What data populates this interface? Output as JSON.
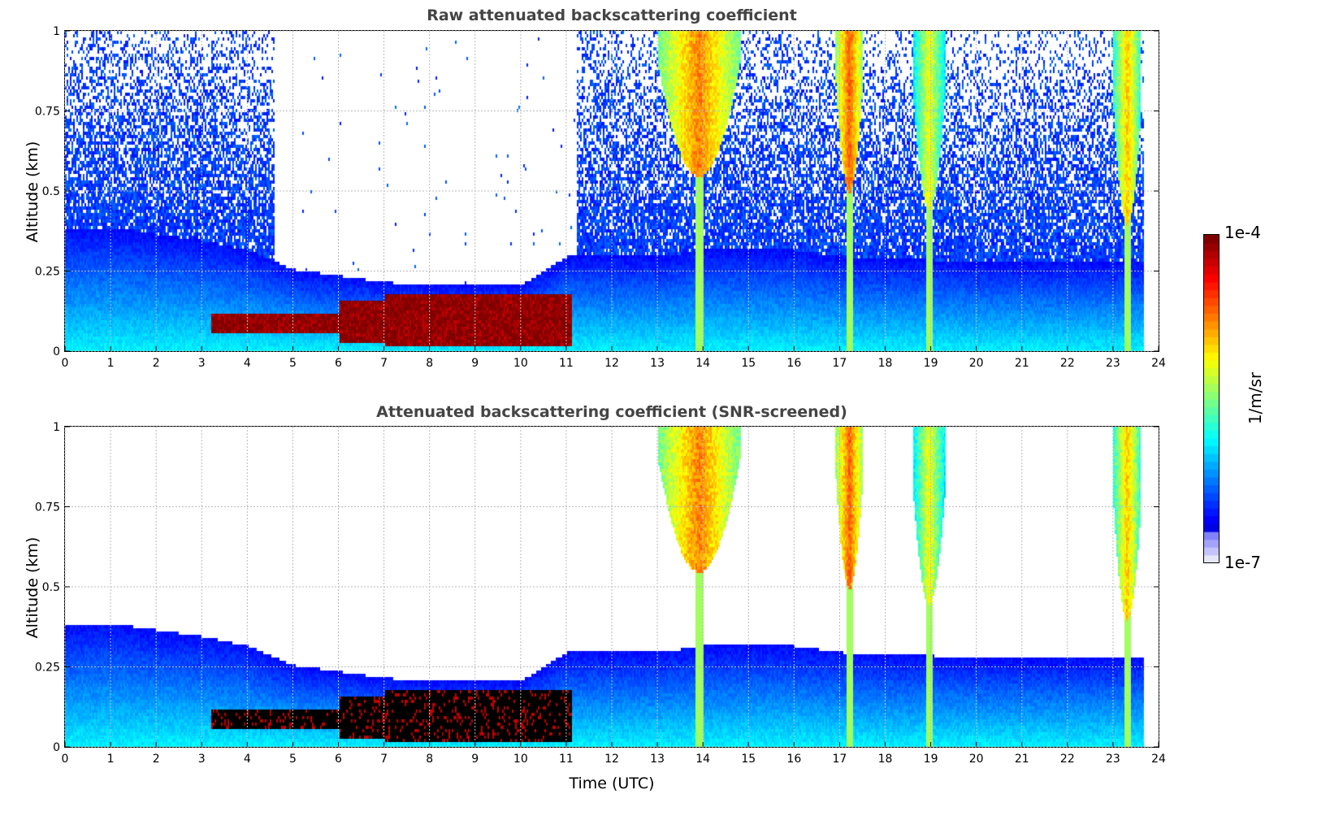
{
  "chart_data": [
    {
      "type": "heatmap",
      "title": "Raw attenuated backscattering coefficient",
      "xlabel": "Time (UTC)",
      "ylabel": "Altitude (km)",
      "xlim": [
        0,
        24
      ],
      "ylim": [
        0,
        1
      ],
      "xticks": [
        "0",
        "1",
        "2",
        "3",
        "4",
        "5",
        "6",
        "7",
        "8",
        "9",
        "10",
        "11",
        "12",
        "13",
        "14",
        "15",
        "16",
        "17",
        "18",
        "19",
        "20",
        "21",
        "22",
        "23",
        "24"
      ],
      "yticks": [
        "0",
        "0.25",
        "0.5",
        "0.75",
        "1"
      ],
      "grid": true,
      "screened": false
    },
    {
      "type": "heatmap",
      "title": "Attenuated backscattering coefficient (SNR-screened)",
      "xlabel": "Time (UTC)",
      "ylabel": "Altitude (km)",
      "xlim": [
        0,
        24
      ],
      "ylim": [
        0,
        1
      ],
      "xticks": [
        "0",
        "1",
        "2",
        "3",
        "4",
        "5",
        "6",
        "7",
        "8",
        "9",
        "10",
        "11",
        "12",
        "13",
        "14",
        "15",
        "16",
        "17",
        "18",
        "19",
        "20",
        "21",
        "22",
        "23",
        "24"
      ],
      "yticks": [
        "0",
        "0.25",
        "0.5",
        "0.75",
        "1"
      ],
      "grid": true,
      "screened": true
    }
  ],
  "features": {
    "data_end_hour": 23.65,
    "boundary_layer_top_km": [
      0.39,
      0.39,
      0.37,
      0.35,
      0.32,
      0.26,
      0.24,
      0.22,
      0.21,
      0.21,
      0.21,
      0.3,
      0.3,
      0.3,
      0.32,
      0.32,
      0.32,
      0.3,
      0.29,
      0.29,
      0.28,
      0.28,
      0.28,
      0.28,
      0.28
    ],
    "aerosol_layer": {
      "start": 3.2,
      "end": 11.1,
      "top_km": 0.18,
      "log10_value": -4.1
    },
    "clouds": [
      {
        "start": 13.0,
        "end": 14.8,
        "base_km": 0.55,
        "log10_value": -4.6
      },
      {
        "start": 16.9,
        "end": 17.5,
        "base_km": 0.5,
        "log10_value": -4.5
      },
      {
        "start": 18.6,
        "end": 19.3,
        "base_km": 0.45,
        "log10_value": -5.0
      },
      {
        "start": 23.0,
        "end": 23.6,
        "base_km": 0.4,
        "log10_value": -4.8
      }
    ]
  },
  "colorbar": {
    "label": "1/m/sr",
    "max_label": "1e-4",
    "min_label": "1e-7",
    "log_min": -7,
    "log_max": -4
  }
}
